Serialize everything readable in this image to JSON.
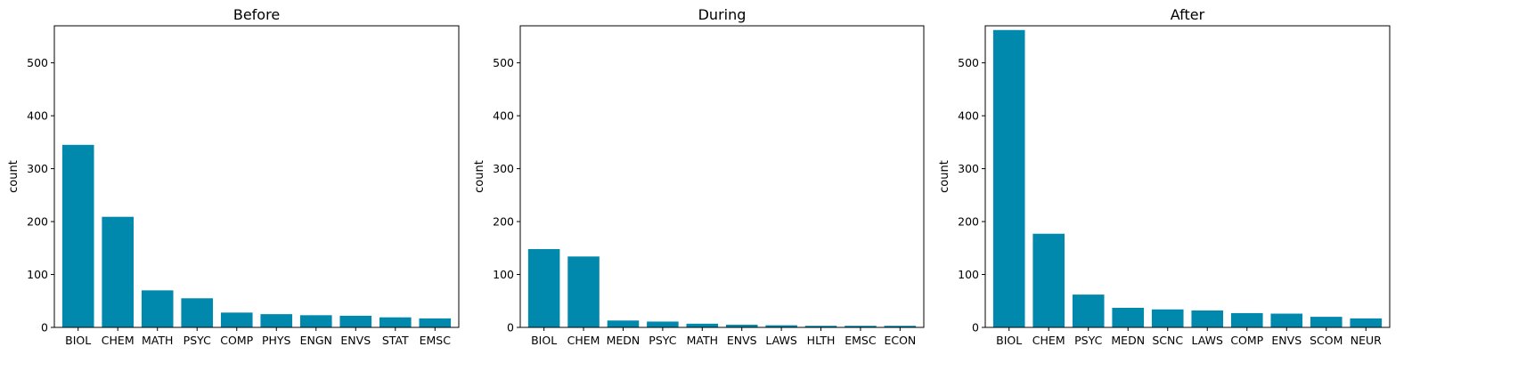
{
  "chart_data": [
    {
      "type": "bar",
      "title": "Before",
      "xlabel": "",
      "ylabel": "count",
      "ylim": [
        0,
        570
      ],
      "yticks": [
        0,
        100,
        200,
        300,
        400,
        500
      ],
      "categories": [
        "BIOL",
        "CHEM",
        "MATH",
        "PSYC",
        "COMP",
        "PHYS",
        "ENGN",
        "ENVS",
        "STAT",
        "EMSC"
      ],
      "values": [
        345,
        209,
        70,
        55,
        28,
        25,
        23,
        22,
        19,
        17
      ],
      "color": "#0088AD"
    },
    {
      "type": "bar",
      "title": "During",
      "xlabel": "",
      "ylabel": "count",
      "ylim": [
        0,
        570
      ],
      "yticks": [
        0,
        100,
        200,
        300,
        400,
        500
      ],
      "categories": [
        "BIOL",
        "CHEM",
        "MEDN",
        "PSYC",
        "MATH",
        "ENVS",
        "LAWS",
        "HLTH",
        "EMSC",
        "ECON"
      ],
      "values": [
        148,
        134,
        13,
        11,
        7,
        5,
        4,
        3,
        3,
        3
      ],
      "color": "#0088AD"
    },
    {
      "type": "bar",
      "title": "After",
      "xlabel": "",
      "ylabel": "count",
      "ylim": [
        0,
        570
      ],
      "yticks": [
        0,
        100,
        200,
        300,
        400,
        500
      ],
      "categories": [
        "BIOL",
        "CHEM",
        "PSYC",
        "MEDN",
        "SCNC",
        "LAWS",
        "COMP",
        "ENVS",
        "SCOM",
        "NEUR"
      ],
      "values": [
        562,
        177,
        62,
        37,
        34,
        32,
        27,
        26,
        20,
        17
      ],
      "color": "#0088AD"
    }
  ]
}
